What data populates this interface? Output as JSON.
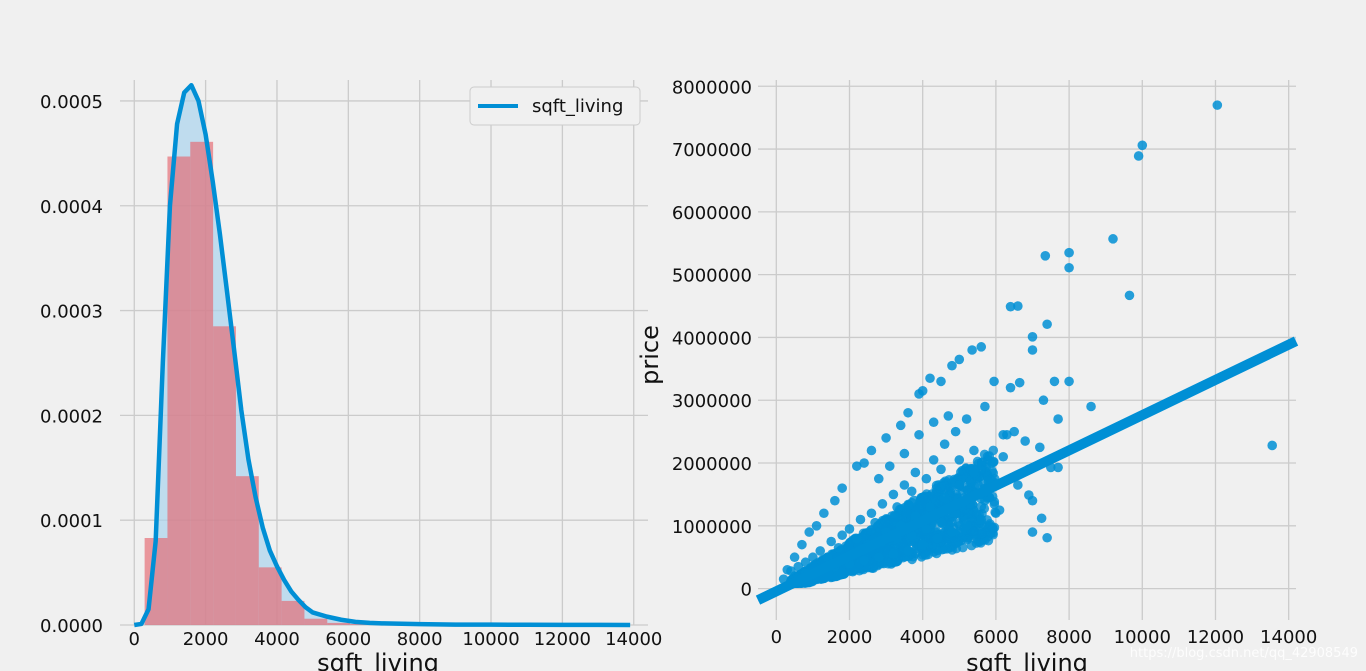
{
  "colors": {
    "background": "#f0f0f0",
    "grid": "#cbcbcb",
    "kde_line": "#008fd5",
    "kde_fill": "#a9d3ec",
    "hist_bar": "#e5666e",
    "scatter": "#008fd5",
    "regression": "#008fd5",
    "ci_band": "#a9d3ec",
    "tick_text": "#111111",
    "watermark": "#ffffff"
  },
  "chart_data": [
    {
      "type": "bar",
      "subtype": "histogram_with_kde",
      "title": "",
      "xlabel": "sqft_living",
      "ylabel": "",
      "xlim": [
        -400,
        14400
      ],
      "ylim": [
        0,
        0.00052
      ],
      "grid": true,
      "xticks": [
        0,
        2000,
        4000,
        6000,
        8000,
        10000,
        12000,
        14000
      ],
      "xtick_labels": [
        "0",
        "2000",
        "4000",
        "6000",
        "8000",
        "10000",
        "12000",
        "14000"
      ],
      "yticks": [
        0,
        0.0001,
        0.0002,
        0.0003,
        0.0004,
        0.0005
      ],
      "ytick_labels": [
        "0.0000",
        "0.0001",
        "0.0002",
        "0.0003",
        "0.0004",
        "0.0005"
      ],
      "legend": {
        "placement": "top-right",
        "entries": [
          "sqft_living"
        ]
      },
      "histogram": {
        "bin_edges": [
          290,
          930,
          1570,
          2210,
          2850,
          3490,
          4130,
          4770,
          5410,
          6050,
          6690,
          7330,
          7970,
          8610,
          9250,
          9890,
          10530,
          11170,
          11810,
          12450,
          13090,
          13730
        ],
        "densities": [
          8.3e-05,
          0.000447,
          0.000461,
          0.000285,
          0.000142,
          5.5e-05,
          2.3e-05,
          6e-06,
          2e-06,
          1e-06,
          5e-07,
          3e-07,
          2e-07,
          1e-07,
          1e-07,
          0,
          0,
          0,
          0,
          0,
          0
        ]
      },
      "series": [
        {
          "name": "sqft_living",
          "x": [
            0,
            200,
            400,
            600,
            800,
            1000,
            1200,
            1400,
            1600,
            1800,
            2000,
            2200,
            2400,
            2600,
            2800,
            3000,
            3200,
            3400,
            3600,
            3800,
            4000,
            4200,
            4400,
            4600,
            4800,
            5000,
            5400,
            5800,
            6200,
            6600,
            7000,
            8000,
            9000,
            10000,
            11000,
            12000,
            13000,
            13900
          ],
          "y": [
            0,
            1e-06,
            1.5e-05,
            8e-05,
            0.00025,
            0.0004,
            0.000478,
            0.000508,
            0.000515,
            0.0005,
            0.000468,
            0.000423,
            0.000373,
            0.000318,
            0.000262,
            0.000205,
            0.000158,
            0.000122,
            9.3e-05,
            7.1e-05,
            5.6e-05,
            4.3e-05,
            3.2e-05,
            2.4e-05,
            1.7e-05,
            1.2e-05,
            8e-06,
            5e-06,
            3e-06,
            2e-06,
            1.5e-06,
            8e-07,
            4e-07,
            3e-07,
            2e-07,
            1e-07,
            1e-07,
            0
          ]
        }
      ]
    },
    {
      "type": "scatter",
      "subtype": "regression_plot",
      "title": "",
      "xlabel": "sqft_living",
      "ylabel": "price",
      "xlim": [
        -500,
        14200
      ],
      "ylim": [
        -500000,
        8100000
      ],
      "grid": true,
      "xticks": [
        0,
        2000,
        4000,
        6000,
        8000,
        10000,
        12000,
        14000
      ],
      "xtick_labels": [
        "0",
        "2000",
        "4000",
        "6000",
        "8000",
        "10000",
        "12000",
        "14000"
      ],
      "yticks": [
        0,
        1000000,
        2000000,
        3000000,
        4000000,
        5000000,
        6000000,
        7000000,
        8000000
      ],
      "ytick_labels": [
        "0",
        "1000000",
        "2000000",
        "3000000",
        "4000000",
        "5000000",
        "6000000",
        "7000000",
        "8000000"
      ],
      "regression": {
        "intercept": -43000,
        "slope": 280.6,
        "x_range": [
          -500,
          14200
        ]
      },
      "points": [
        [
          12050,
          7700000
        ],
        [
          10000,
          7060000
        ],
        [
          9900,
          6890000
        ],
        [
          9200,
          5570000
        ],
        [
          9650,
          4670000
        ],
        [
          8000,
          5350000
        ],
        [
          8000,
          5110000
        ],
        [
          7350,
          5300000
        ],
        [
          6400,
          4490000
        ],
        [
          6600,
          4500000
        ],
        [
          7400,
          4210000
        ],
        [
          7000,
          4010000
        ],
        [
          7000,
          3800000
        ],
        [
          8000,
          3300000
        ],
        [
          7600,
          3300000
        ],
        [
          7300,
          3000000
        ],
        [
          8600,
          2900000
        ],
        [
          7700,
          2700000
        ],
        [
          7200,
          2250000
        ],
        [
          7500,
          1930000
        ],
        [
          7700,
          1930000
        ],
        [
          7000,
          1400000
        ],
        [
          7000,
          900000
        ],
        [
          7400,
          810000
        ],
        [
          6900,
          1490000
        ],
        [
          7250,
          1120000
        ],
        [
          13550,
          2280000
        ],
        [
          5950,
          3300000
        ],
        [
          6400,
          3200000
        ],
        [
          6650,
          3280000
        ],
        [
          5600,
          3850000
        ],
        [
          5350,
          3800000
        ],
        [
          5000,
          3650000
        ],
        [
          4800,
          3550000
        ],
        [
          4200,
          3350000
        ],
        [
          4000,
          3150000
        ],
        [
          4500,
          3300000
        ],
        [
          3900,
          3100000
        ],
        [
          3600,
          2800000
        ],
        [
          3400,
          2600000
        ],
        [
          3000,
          2400000
        ],
        [
          2600,
          2200000
        ],
        [
          2400,
          2000000
        ],
        [
          2200,
          1950000
        ],
        [
          1800,
          1600000
        ],
        [
          1600,
          1400000
        ],
        [
          1300,
          1200000
        ],
        [
          1100,
          1000000
        ],
        [
          900,
          900000
        ],
        [
          700,
          700000
        ],
        [
          500,
          500000
        ],
        [
          300,
          300000
        ],
        [
          200,
          150000
        ],
        [
          500,
          200000
        ],
        [
          800,
          250000
        ],
        [
          1200,
          300000
        ],
        [
          1600,
          350000
        ],
        [
          2000,
          400000
        ],
        [
          2400,
          450000
        ],
        [
          2800,
          500000
        ],
        [
          3200,
          550000
        ],
        [
          3600,
          600000
        ],
        [
          4000,
          700000
        ],
        [
          4400,
          800000
        ],
        [
          4800,
          900000
        ],
        [
          5200,
          1000000
        ],
        [
          5600,
          1100000
        ],
        [
          6000,
          1200000
        ],
        [
          5500,
          1500000
        ],
        [
          5800,
          1700000
        ],
        [
          6200,
          2100000
        ],
        [
          6500,
          2500000
        ],
        [
          6800,
          2350000
        ],
        [
          6300,
          2450000
        ],
        [
          5900,
          2000000
        ],
        [
          5700,
          2900000
        ],
        [
          5200,
          2700000
        ],
        [
          4900,
          2500000
        ],
        [
          4600,
          2300000
        ],
        [
          4300,
          2050000
        ],
        [
          3800,
          1850000
        ],
        [
          3500,
          1650000
        ],
        [
          3200,
          1500000
        ],
        [
          2900,
          1350000
        ],
        [
          2600,
          1200000
        ],
        [
          2300,
          1100000
        ],
        [
          2000,
          950000
        ],
        [
          1800,
          850000
        ],
        [
          1500,
          750000
        ],
        [
          1200,
          600000
        ],
        [
          1000,
          500000
        ],
        [
          800,
          420000
        ],
        [
          600,
          350000
        ],
        [
          400,
          280000
        ],
        [
          3000,
          900000
        ],
        [
          3400,
          1000000
        ],
        [
          3800,
          1150000
        ],
        [
          4200,
          1300000
        ],
        [
          4600,
          1450000
        ],
        [
          5000,
          1650000
        ],
        [
          5400,
          1850000
        ],
        [
          4500,
          1900000
        ],
        [
          4100,
          1750000
        ],
        [
          3700,
          1550000
        ],
        [
          3300,
          1300000
        ],
        [
          2700,
          1050000
        ],
        [
          2200,
          800000
        ],
        [
          1700,
          650000
        ],
        [
          1400,
          500000
        ],
        [
          2500,
          700000
        ],
        [
          2900,
          750000
        ],
        [
          3300,
          800000
        ],
        [
          3700,
          850000
        ],
        [
          4100,
          950000
        ],
        [
          4500,
          1050000
        ],
        [
          4900,
          1200000
        ],
        [
          5300,
          1350000
        ],
        [
          5700,
          1400000
        ],
        [
          6100,
          1250000
        ],
        [
          6600,
          1650000
        ],
        [
          6900,
          1900000
        ],
        [
          6200,
          2450000
        ],
        [
          5400,
          2200000
        ],
        [
          5000,
          2050000
        ],
        [
          4700,
          2750000
        ],
        [
          4300,
          2650000
        ],
        [
          3900,
          2450000
        ],
        [
          3500,
          2150000
        ],
        [
          3100,
          1950000
        ],
        [
          2800,
          1750000
        ]
      ]
    }
  ],
  "watermark": "https://blog.csdn.net/qq_42908549"
}
